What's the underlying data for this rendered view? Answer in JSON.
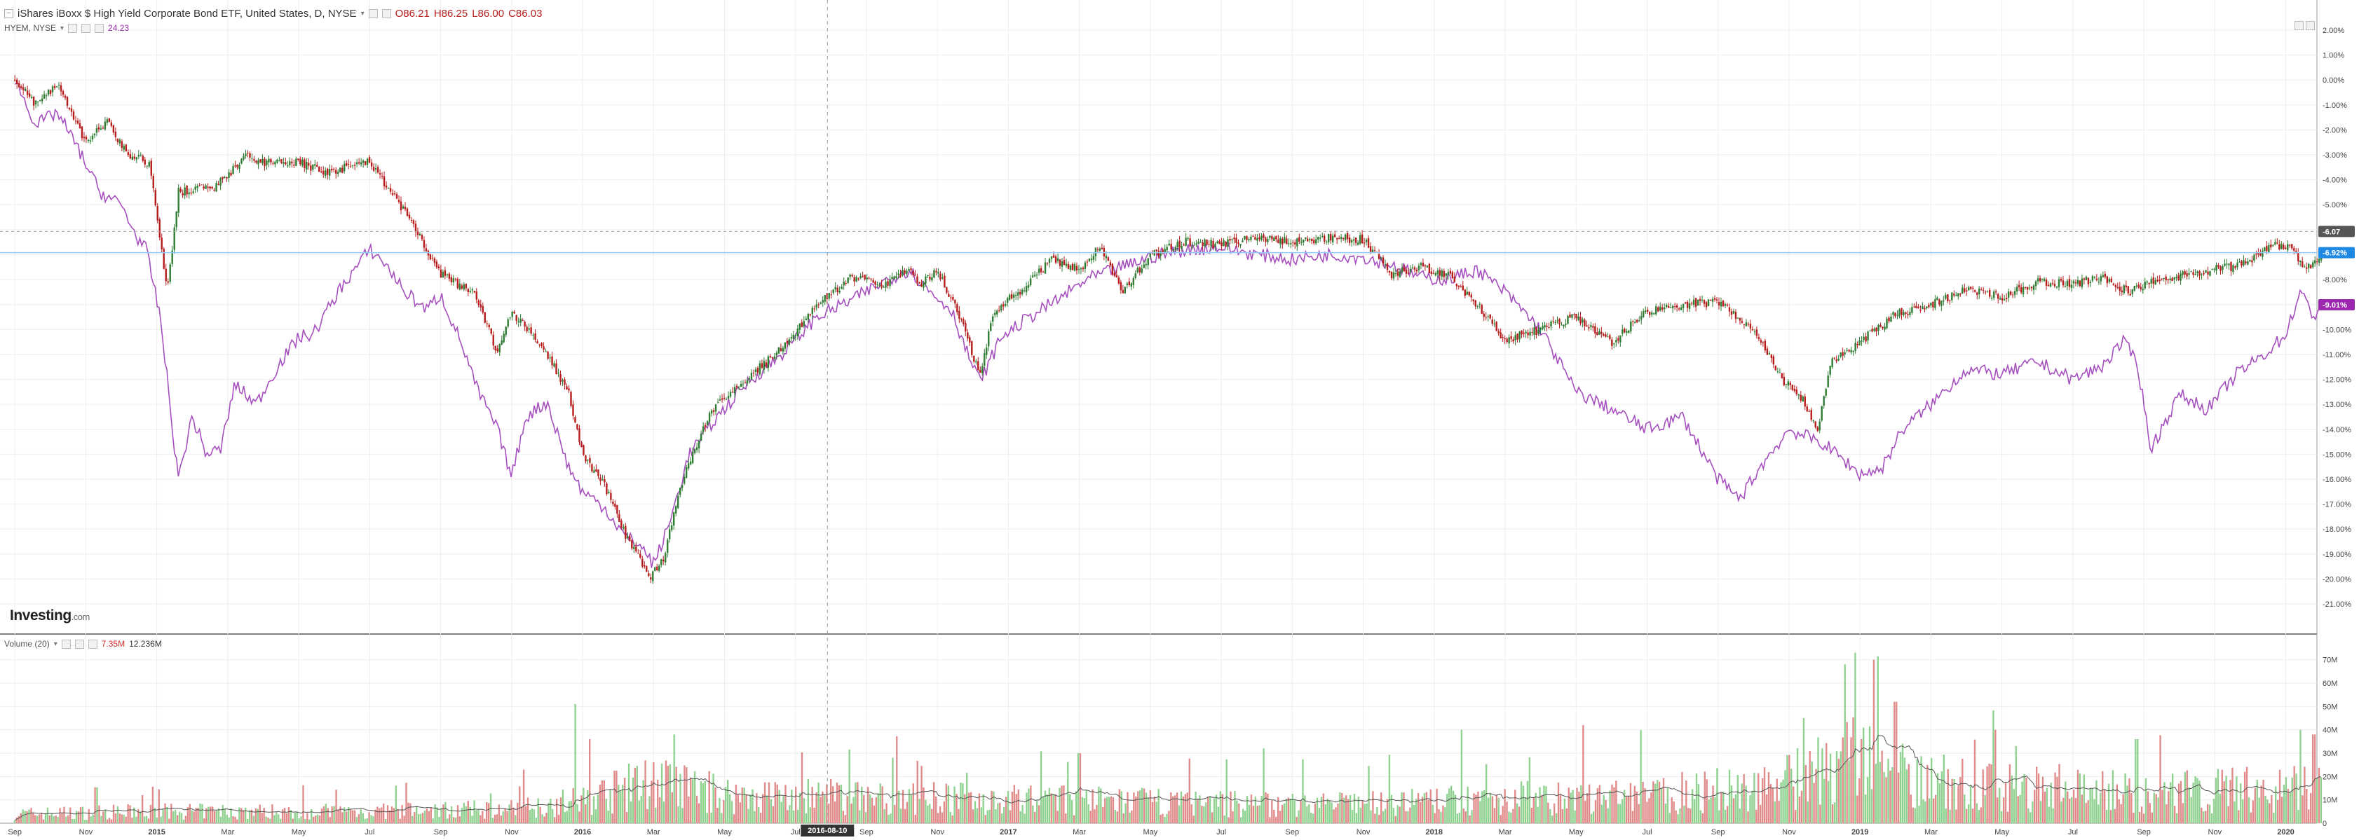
{
  "header": {
    "title": "iShares iBoxx $ High Yield Corporate Bond ETF, United States, D, NYSE",
    "ohlc": {
      "open": "O86.21",
      "high": "H86.25",
      "low": "L86.00",
      "close": "C86.03"
    }
  },
  "compare": {
    "label": "HYEM, NYSE",
    "value": "24.23"
  },
  "volume_legend": {
    "label": "Volume (20)",
    "value1": "7.35M",
    "value2": "12.236M"
  },
  "branding": {
    "logo": "Investing",
    "logo_suffix": ".com"
  },
  "crosshair_label": "2016-08-10",
  "price_badges": [
    {
      "text": "-6.07",
      "color": "#555555"
    },
    {
      "text": "-6.92%",
      "color": "#1e88e5"
    },
    {
      "text": "-9.01%",
      "color": "#9c27b0"
    }
  ],
  "colors": {
    "up": "#2e7d32",
    "down": "#b71c1c",
    "compare": "#a64fbf",
    "vol_up": "#8fd18f",
    "vol_down": "#e08a8a",
    "vol_ma": "#555555",
    "grid": "#eeeeee",
    "hline": "#90caf9"
  },
  "chart_data": [
    {
      "type": "line",
      "title": "iShares iBoxx $ High Yield Corporate Bond ETF, United States, D, NYSE",
      "x_tick_labels": [
        "Sep",
        "Nov",
        "2015",
        "Mar",
        "May",
        "Jul",
        "Sep",
        "Nov",
        "2016",
        "Mar",
        "May",
        "Jul",
        "Sep",
        "Nov",
        "2017",
        "Mar",
        "May",
        "Jul",
        "Sep",
        "Nov",
        "2018",
        "Mar",
        "May",
        "Jul",
        "Sep",
        "Nov",
        "2019",
        "Mar",
        "May",
        "Jul",
        "Sep",
        "Nov",
        "2020"
      ],
      "y_axis_unit": "percent change",
      "ylim": [
        -21.7,
        2.7
      ],
      "y_ticks": [
        2,
        1,
        0,
        -1,
        -2,
        -3,
        -4,
        -5,
        -6,
        -7,
        -8,
        -9,
        -10,
        -11,
        -12,
        -13,
        -14,
        -15,
        -16,
        -17,
        -18,
        -19,
        -20,
        -21
      ],
      "series": [
        {
          "name": "iShares iBoxx $ High Yield Corporate Bond ETF",
          "style": "candlestick",
          "points": [
            [
              0,
              0
            ],
            [
              0.3,
              -1.0
            ],
            [
              0.6,
              -0.1
            ],
            [
              1.0,
              -2.5
            ],
            [
              1.3,
              -1.7
            ],
            [
              1.6,
              -3.0
            ],
            [
              1.9,
              -3.3
            ],
            [
              2.15,
              -8.5
            ],
            [
              2.3,
              -4.5
            ],
            [
              2.8,
              -4.3
            ],
            [
              3.3,
              -3.0
            ],
            [
              3.5,
              -3.3
            ],
            [
              4.0,
              -3.3
            ],
            [
              4.4,
              -3.7
            ],
            [
              5.0,
              -3.3
            ],
            [
              5.5,
              -5.3
            ],
            [
              6.0,
              -7.8
            ],
            [
              6.5,
              -8.6
            ],
            [
              6.8,
              -11.0
            ],
            [
              7.0,
              -9.3
            ],
            [
              7.4,
              -10.5
            ],
            [
              7.8,
              -12.5
            ],
            [
              8.0,
              -15.0
            ],
            [
              8.3,
              -16.2
            ],
            [
              8.6,
              -18.2
            ],
            [
              8.95,
              -20.0
            ],
            [
              9.15,
              -19.1
            ],
            [
              9.4,
              -16.1
            ],
            [
              9.8,
              -13.3
            ],
            [
              10.3,
              -12.0
            ],
            [
              10.8,
              -10.8
            ],
            [
              11.3,
              -9.0
            ],
            [
              11.8,
              -7.9
            ],
            [
              12.3,
              -8.2
            ],
            [
              12.6,
              -7.5
            ],
            [
              12.75,
              -8.2
            ],
            [
              13.0,
              -7.6
            ],
            [
              13.3,
              -9.4
            ],
            [
              13.6,
              -11.8
            ],
            [
              13.8,
              -9.2
            ],
            [
              14.2,
              -8.4
            ],
            [
              14.6,
              -7.2
            ],
            [
              15.0,
              -7.6
            ],
            [
              15.3,
              -6.6
            ],
            [
              15.6,
              -8.5
            ],
            [
              16.0,
              -7.0
            ],
            [
              16.5,
              -6.5
            ],
            [
              17.0,
              -6.6
            ],
            [
              17.5,
              -6.3
            ],
            [
              18.0,
              -6.5
            ],
            [
              18.5,
              -6.3
            ],
            [
              19.0,
              -6.4
            ],
            [
              19.4,
              -7.8
            ],
            [
              19.8,
              -7.5
            ],
            [
              20.2,
              -7.8
            ],
            [
              20.6,
              -9.0
            ],
            [
              21.0,
              -10.4
            ],
            [
              21.5,
              -10.0
            ],
            [
              22.0,
              -9.5
            ],
            [
              22.5,
              -10.5
            ],
            [
              23.0,
              -9.3
            ],
            [
              23.5,
              -9.0
            ],
            [
              24.0,
              -8.9
            ],
            [
              24.5,
              -10.0
            ],
            [
              24.9,
              -12.0
            ],
            [
              25.2,
              -12.8
            ],
            [
              25.4,
              -14.0
            ],
            [
              25.6,
              -11.3
            ],
            [
              26.0,
              -10.5
            ],
            [
              26.5,
              -9.4
            ],
            [
              27.0,
              -9.0
            ],
            [
              27.5,
              -8.4
            ],
            [
              28.0,
              -8.7
            ],
            [
              28.5,
              -8.1
            ],
            [
              29.0,
              -8.2
            ],
            [
              29.4,
              -7.9
            ],
            [
              29.8,
              -8.5
            ],
            [
              30.2,
              -8.0
            ],
            [
              30.6,
              -7.8
            ],
            [
              31.0,
              -7.6
            ],
            [
              31.4,
              -7.4
            ],
            [
              31.8,
              -6.6
            ],
            [
              32.1,
              -6.8
            ],
            [
              32.3,
              -7.6
            ],
            [
              32.5,
              -6.9
            ]
          ]
        },
        {
          "name": "HYEM, NYSE",
          "style": "line",
          "points": [
            [
              0,
              0
            ],
            [
              0.3,
              -1.8
            ],
            [
              0.6,
              -1.3
            ],
            [
              0.9,
              -2.8
            ],
            [
              1.2,
              -4.5
            ],
            [
              1.5,
              -5.0
            ],
            [
              1.7,
              -6.2
            ],
            [
              1.85,
              -6.8
            ],
            [
              2.05,
              -9.5
            ],
            [
              2.3,
              -16.0
            ],
            [
              2.5,
              -13.5
            ],
            [
              2.7,
              -15.0
            ],
            [
              2.9,
              -14.8
            ],
            [
              3.1,
              -12.2
            ],
            [
              3.4,
              -13.0
            ],
            [
              3.7,
              -11.5
            ],
            [
              4.0,
              -10.3
            ],
            [
              4.2,
              -10.2
            ],
            [
              4.6,
              -8.3
            ],
            [
              5.0,
              -6.8
            ],
            [
              5.2,
              -7.3
            ],
            [
              5.5,
              -8.5
            ],
            [
              5.8,
              -9.2
            ],
            [
              6.0,
              -8.6
            ],
            [
              6.3,
              -10.6
            ],
            [
              6.5,
              -12.3
            ],
            [
              6.8,
              -14.0
            ],
            [
              7.0,
              -15.9
            ],
            [
              7.2,
              -13.5
            ],
            [
              7.5,
              -12.9
            ],
            [
              7.8,
              -15.5
            ],
            [
              8.0,
              -16.5
            ],
            [
              8.3,
              -17.1
            ],
            [
              8.6,
              -18.3
            ],
            [
              8.8,
              -18.6
            ],
            [
              9.0,
              -19.4
            ],
            [
              9.2,
              -18.0
            ],
            [
              9.5,
              -15.0
            ],
            [
              9.9,
              -13.5
            ],
            [
              10.3,
              -12.2
            ],
            [
              10.8,
              -11.0
            ],
            [
              11.3,
              -9.5
            ],
            [
              11.8,
              -8.8
            ],
            [
              12.3,
              -8.0
            ],
            [
              12.6,
              -7.6
            ],
            [
              12.9,
              -8.5
            ],
            [
              13.2,
              -9.2
            ],
            [
              13.4,
              -10.8
            ],
            [
              13.6,
              -12.1
            ],
            [
              13.9,
              -10.3
            ],
            [
              14.3,
              -9.5
            ],
            [
              14.7,
              -8.8
            ],
            [
              15.1,
              -8.0
            ],
            [
              15.6,
              -7.5
            ],
            [
              16.0,
              -7.1
            ],
            [
              16.5,
              -6.8
            ],
            [
              17.0,
              -6.7
            ],
            [
              17.5,
              -7.0
            ],
            [
              18.0,
              -7.2
            ],
            [
              18.5,
              -7.0
            ],
            [
              19.0,
              -7.1
            ],
            [
              19.5,
              -7.5
            ],
            [
              19.8,
              -7.9
            ],
            [
              20.2,
              -8.0
            ],
            [
              20.6,
              -7.6
            ],
            [
              21.0,
              -8.5
            ],
            [
              21.5,
              -10.0
            ],
            [
              22.0,
              -12.5
            ],
            [
              22.5,
              -13.2
            ],
            [
              23.0,
              -14.0
            ],
            [
              23.5,
              -13.5
            ],
            [
              24.0,
              -16.0
            ],
            [
              24.3,
              -16.8
            ],
            [
              24.6,
              -15.5
            ],
            [
              25.0,
              -14.0
            ],
            [
              25.5,
              -14.6
            ],
            [
              25.8,
              -15.3
            ],
            [
              26.0,
              -15.8
            ],
            [
              26.3,
              -15.6
            ],
            [
              26.6,
              -14.0
            ],
            [
              27.0,
              -13.0
            ],
            [
              27.5,
              -11.6
            ],
            [
              28.0,
              -11.8
            ],
            [
              28.5,
              -11.3
            ],
            [
              29.0,
              -12.0
            ],
            [
              29.4,
              -11.5
            ],
            [
              29.7,
              -10.5
            ],
            [
              29.9,
              -11.2
            ],
            [
              30.1,
              -14.8
            ],
            [
              30.5,
              -12.6
            ],
            [
              30.9,
              -13.2
            ],
            [
              31.3,
              -11.8
            ],
            [
              31.7,
              -11.0
            ],
            [
              32.0,
              -10.2
            ],
            [
              32.2,
              -8.5
            ],
            [
              32.4,
              -9.5
            ],
            [
              32.5,
              -9.0
            ]
          ]
        }
      ]
    },
    {
      "type": "bar",
      "title": "Volume (20)",
      "ylim": [
        0,
        75
      ],
      "y_ticks": [
        0,
        10,
        20,
        30,
        40,
        50,
        60,
        70
      ],
      "y_tick_labels": [
        "0",
        "10M",
        "20M",
        "30M",
        "40M",
        "50M",
        "60M",
        "70M"
      ],
      "baseline_profile_millions": [
        [
          0,
          4
        ],
        [
          2,
          5
        ],
        [
          5,
          5
        ],
        [
          7,
          6
        ],
        [
          8,
          10
        ],
        [
          9,
          18
        ],
        [
          10,
          12
        ],
        [
          12,
          11
        ],
        [
          14,
          10
        ],
        [
          16,
          9
        ],
        [
          18,
          8
        ],
        [
          20,
          9
        ],
        [
          21,
          11
        ],
        [
          22,
          10
        ],
        [
          24,
          14
        ],
        [
          25,
          18
        ],
        [
          26,
          28
        ],
        [
          27,
          18
        ],
        [
          28,
          15
        ],
        [
          29,
          16
        ],
        [
          30,
          13
        ],
        [
          31,
          14
        ],
        [
          32,
          15
        ],
        [
          32.5,
          16
        ]
      ],
      "spikes_millions": [
        [
          7.9,
          51
        ],
        [
          8.1,
          36
        ],
        [
          9.3,
          38
        ],
        [
          15.0,
          30
        ],
        [
          17.6,
          32
        ],
        [
          20.4,
          40
        ],
        [
          22.1,
          42
        ],
        [
          25.2,
          45
        ],
        [
          25.8,
          68
        ],
        [
          26.2,
          70
        ],
        [
          26.5,
          52
        ],
        [
          27.9,
          40
        ],
        [
          29.9,
          36
        ],
        [
          32.2,
          40
        ],
        [
          32.4,
          38
        ]
      ],
      "moving_average_length": 20
    }
  ]
}
